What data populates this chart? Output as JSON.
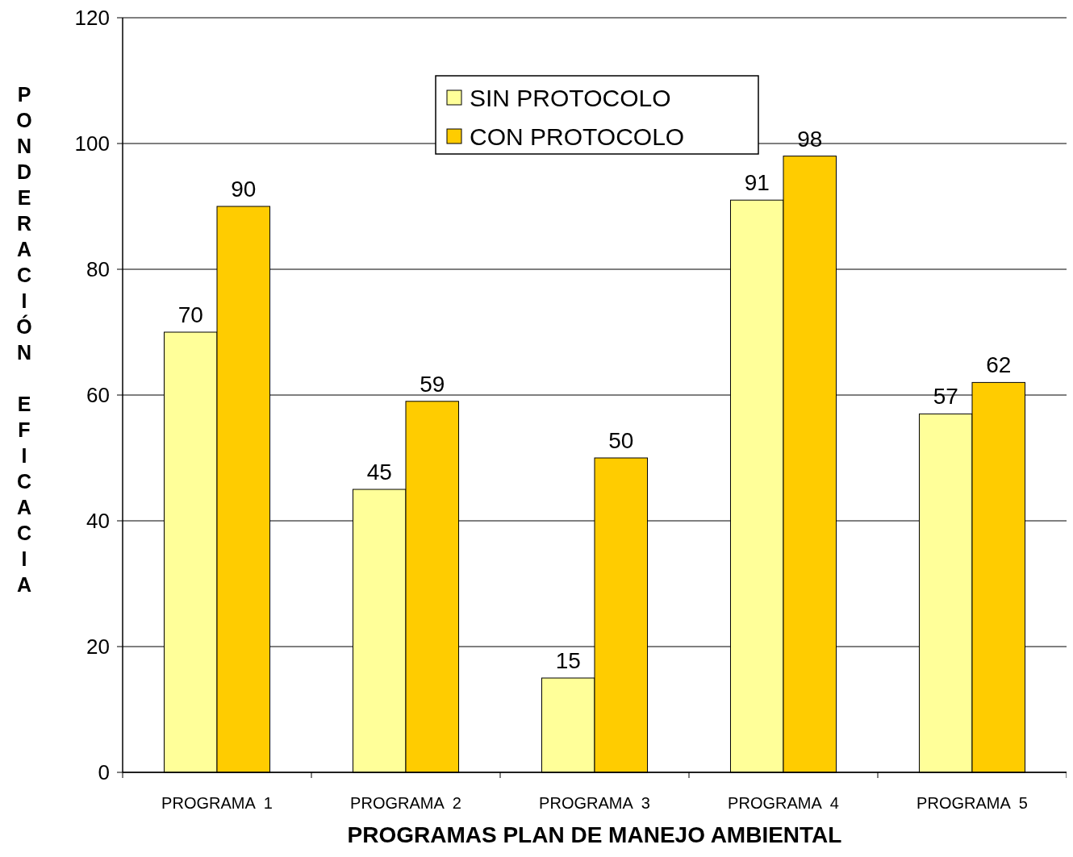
{
  "chart_data": {
    "type": "bar",
    "xlabel": "PROGRAMAS PLAN DE MANEJO AMBIENTAL",
    "ylabel": "PONDERACIÓN  EFICACIA",
    "categories": [
      "PROGRAMA  1",
      "PROGRAMA  2",
      "PROGRAMA  3",
      "PROGRAMA  4",
      "PROGRAMA  5"
    ],
    "series": [
      {
        "name": "SIN PROTOCOLO",
        "color": "#ffff99",
        "values": [
          70,
          45,
          15,
          91,
          57
        ]
      },
      {
        "name": "CON PROTOCOLO",
        "color": "#ffcc00",
        "values": [
          90,
          59,
          50,
          98,
          62
        ]
      }
    ],
    "ylim": [
      0,
      120
    ],
    "yticks": [
      0,
      20,
      40,
      60,
      80,
      100,
      120
    ],
    "grid": "y",
    "legend": "top",
    "data_labels": true
  }
}
